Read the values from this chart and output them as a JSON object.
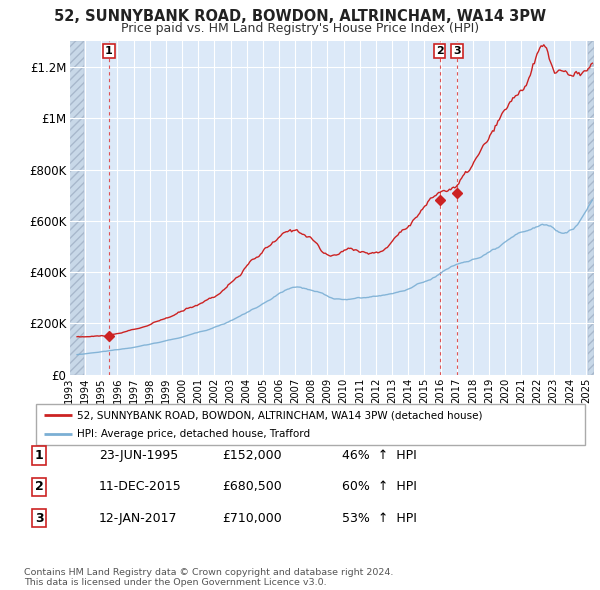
{
  "title": "52, SUNNYBANK ROAD, BOWDON, ALTRINCHAM, WA14 3PW",
  "subtitle": "Price paid vs. HM Land Registry's House Price Index (HPI)",
  "ylim": [
    0,
    1300000
  ],
  "yticks": [
    0,
    200000,
    400000,
    600000,
    800000,
    1000000,
    1200000
  ],
  "ytick_labels": [
    "£0",
    "£200K",
    "£400K",
    "£600K",
    "£800K",
    "£1M",
    "£1.2M"
  ],
  "plot_bg_color": "#dce9f8",
  "grid_color": "#ffffff",
  "legend_label_red": "52, SUNNYBANK ROAD, BOWDON, ALTRINCHAM, WA14 3PW (detached house)",
  "legend_label_blue": "HPI: Average price, detached house, Trafford",
  "footer": "Contains HM Land Registry data © Crown copyright and database right 2024.\nThis data is licensed under the Open Government Licence v3.0.",
  "transactions": [
    {
      "num": 1,
      "date": "23-JUN-1995",
      "price": 152000,
      "pct": "46%",
      "dir": "↑",
      "x": 1995.47
    },
    {
      "num": 2,
      "date": "11-DEC-2015",
      "price": 680500,
      "pct": "60%",
      "dir": "↑",
      "x": 2015.94
    },
    {
      "num": 3,
      "date": "12-JAN-2017",
      "price": 710000,
      "pct": "53%",
      "dir": "↑",
      "x": 2017.03
    }
  ],
  "xlim": [
    1993.0,
    2025.5
  ],
  "xtick_years": [
    1993,
    1994,
    1995,
    1996,
    1997,
    1998,
    1999,
    2000,
    2001,
    2002,
    2003,
    2004,
    2005,
    2006,
    2007,
    2008,
    2009,
    2010,
    2011,
    2012,
    2013,
    2014,
    2015,
    2016,
    2017,
    2018,
    2019,
    2020,
    2021,
    2022,
    2023,
    2024,
    2025
  ]
}
